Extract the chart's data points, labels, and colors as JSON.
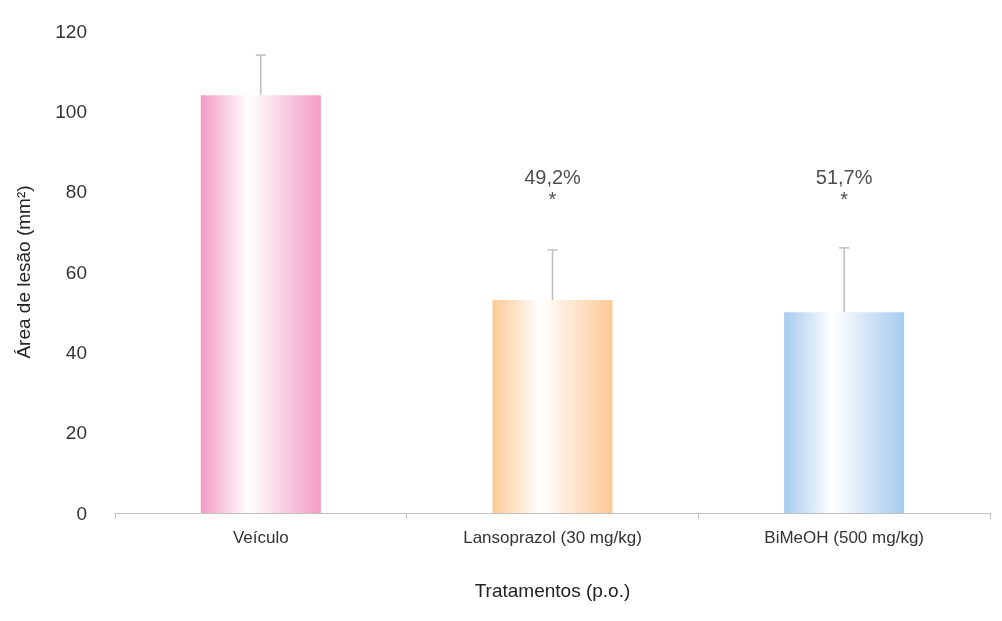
{
  "chart_data": {
    "type": "bar",
    "xlabel": "Tratamentos (p.o.)",
    "ylabel": "Área de lesão (mm²)",
    "categories": [
      "Veículo",
      "Lansoprazol (30 mg/kg)",
      "BiMeOH (500 mg/kg)"
    ],
    "values": [
      104,
      53,
      50
    ],
    "colors": [
      "#f29cc4",
      "#fdc994",
      "#a5cbee"
    ],
    "errors": [
      [
        104,
        114
      ],
      [
        53,
        65.5
      ],
      [
        50,
        66
      ]
    ],
    "ylim": [
      0,
      120
    ],
    "yticks": [
      0,
      20,
      40,
      60,
      80,
      100,
      120
    ],
    "grid": false,
    "annotations": [
      "49,2%\n*",
      "51,7%\n*"
    ]
  }
}
